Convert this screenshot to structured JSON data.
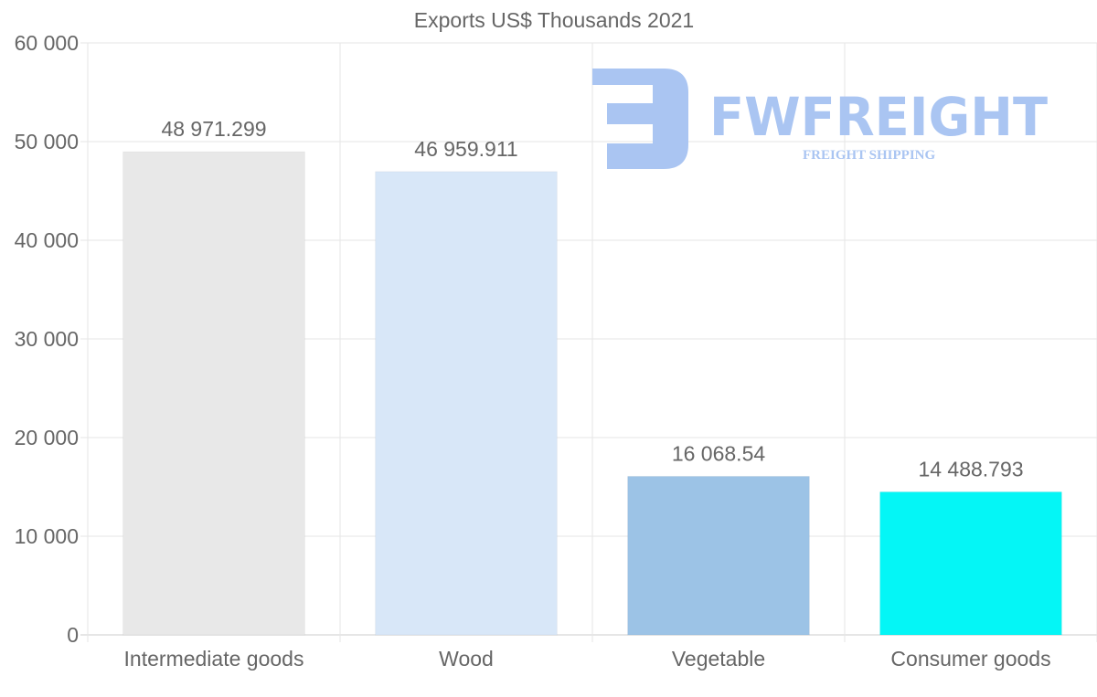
{
  "chart_data": {
    "type": "bar",
    "title": "Exports US$ Thousands 2021",
    "xlabel": "",
    "ylabel": "",
    "categories": [
      "Intermediate goods",
      "Wood",
      "Vegetable",
      "Consumer goods"
    ],
    "values": [
      48971.299,
      46959.911,
      16068.54,
      14488.793
    ],
    "value_labels": [
      "48 971.299",
      "46 959.911",
      "16 068.54",
      "14 488.793"
    ],
    "colors": [
      "#e8e8e8",
      "#d8e7f8",
      "#9cc3e6",
      "#04f6f6"
    ],
    "ylim": [
      0,
      60000
    ],
    "yticks": [
      0,
      10000,
      20000,
      30000,
      40000,
      50000,
      60000
    ],
    "ytick_labels": [
      "0",
      "10 000",
      "20 000",
      "30 000",
      "40 000",
      "50 000",
      "60 000"
    ],
    "grid": true,
    "legend": "none"
  },
  "watermark": {
    "brand": "FWFREIGHT",
    "tagline": "FREIGHT SHIPPING",
    "color": "#aac5f2"
  }
}
